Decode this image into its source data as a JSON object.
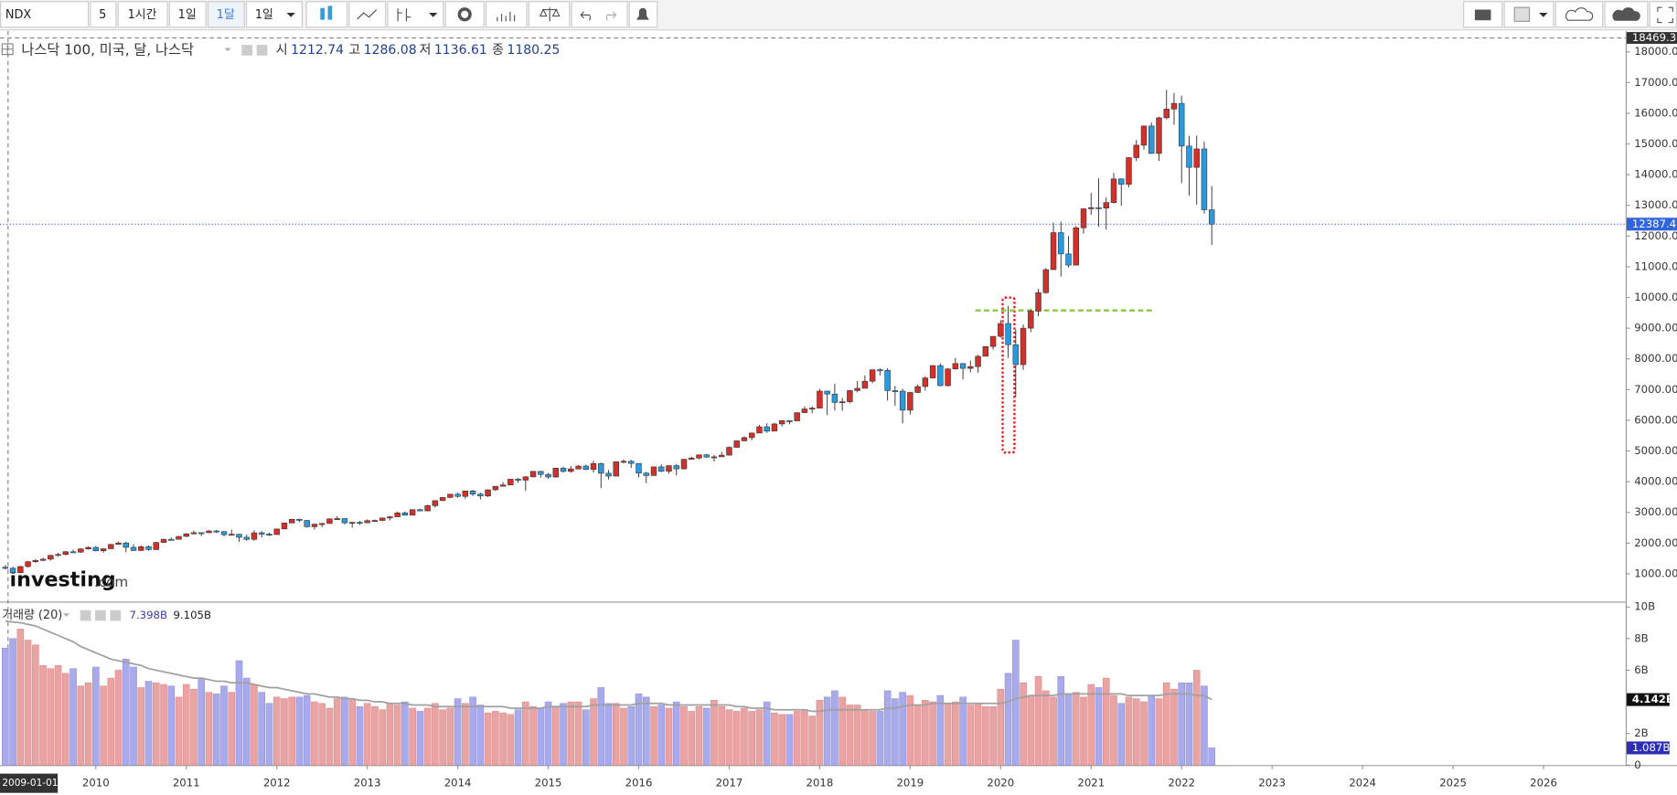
{
  "toolbar": {
    "symbol": "NDX",
    "buttons": [
      "5",
      "1시간",
      "1일",
      "1달",
      "1일"
    ]
  },
  "chart_data": [
    {
      "type": "candlestick",
      "title": "나스닥 100, 미국, 달, 나스닥",
      "ohlc_labels": [
        "시",
        "고",
        "저",
        "종"
      ],
      "x_cursor_label": "2009-01-01",
      "x": [
        "2009-01",
        "2009-02",
        "2009-03",
        "2009-04",
        "2009-05",
        "2009-06",
        "2009-07",
        "2009-08",
        "2009-09",
        "2009-10",
        "2009-11",
        "2009-12",
        "2010-01",
        "2010-02",
        "2010-03",
        "2010-04",
        "2010-05",
        "2010-06",
        "2010-07",
        "2010-08",
        "2010-09",
        "2010-10",
        "2010-11",
        "2010-12",
        "2011-01",
        "2011-02",
        "2011-03",
        "2011-04",
        "2011-05",
        "2011-06",
        "2011-07",
        "2011-08",
        "2011-09",
        "2011-10",
        "2011-11",
        "2011-12",
        "2012-01",
        "2012-02",
        "2012-03",
        "2012-04",
        "2012-05",
        "2012-06",
        "2012-07",
        "2012-08",
        "2012-09",
        "2012-10",
        "2012-11",
        "2012-12",
        "2013-01",
        "2013-02",
        "2013-03",
        "2013-04",
        "2013-05",
        "2013-06",
        "2013-07",
        "2013-08",
        "2013-09",
        "2013-10",
        "2013-11",
        "2013-12",
        "2014-01",
        "2014-02",
        "2014-03",
        "2014-04",
        "2014-05",
        "2014-06",
        "2014-07",
        "2014-08",
        "2014-09",
        "2014-10",
        "2014-11",
        "2014-12",
        "2015-01",
        "2015-02",
        "2015-03",
        "2015-04",
        "2015-05",
        "2015-06",
        "2015-07",
        "2015-08",
        "2015-09",
        "2015-10",
        "2015-11",
        "2015-12",
        "2016-01",
        "2016-02",
        "2016-03",
        "2016-04",
        "2016-05",
        "2016-06",
        "2016-07",
        "2016-08",
        "2016-09",
        "2016-10",
        "2016-11",
        "2016-12",
        "2017-01",
        "2017-02",
        "2017-03",
        "2017-04",
        "2017-05",
        "2017-06",
        "2017-07",
        "2017-08",
        "2017-09",
        "2017-10",
        "2017-11",
        "2017-12",
        "2018-01",
        "2018-02",
        "2018-03",
        "2018-04",
        "2018-05",
        "2018-06",
        "2018-07",
        "2018-08",
        "2018-09",
        "2018-10",
        "2018-11",
        "2018-12",
        "2019-01",
        "2019-02",
        "2019-03",
        "2019-04",
        "2019-05",
        "2019-06",
        "2019-07",
        "2019-08",
        "2019-09",
        "2019-10",
        "2019-11",
        "2019-12",
        "2020-01",
        "2020-02",
        "2020-03",
        "2020-04",
        "2020-05",
        "2020-06",
        "2020-07",
        "2020-08",
        "2020-09",
        "2020-10",
        "2020-11",
        "2020-12",
        "2021-01",
        "2021-02",
        "2021-03",
        "2021-04",
        "2021-05",
        "2021-06",
        "2021-07",
        "2021-08",
        "2021-09",
        "2021-10",
        "2021-11",
        "2021-12",
        "2022-01",
        "2022-02",
        "2022-03",
        "2022-04",
        "2022-05"
      ],
      "open": [
        1212.74,
        1180,
        1036,
        1237,
        1393,
        1435,
        1477,
        1600,
        1632,
        1719,
        1706,
        1810,
        1860,
        1749,
        1816,
        1957,
        2004,
        1862,
        1759,
        1883,
        1789,
        2021,
        2124,
        2123,
        2218,
        2300,
        2340,
        2338,
        2396,
        2375,
        2274,
        2289,
        2190,
        2122,
        2336,
        2292,
        2278,
        2460,
        2656,
        2776,
        2739,
        2534,
        2616,
        2638,
        2791,
        2800,
        2660,
        2677,
        2661,
        2731,
        2738,
        2819,
        2856,
        2985,
        2910,
        3090,
        3048,
        3218,
        3384,
        3487,
        3592,
        3521,
        3697,
        3596,
        3535,
        3736,
        3850,
        3896,
        4082,
        4050,
        4158,
        4337,
        4236,
        4152,
        4441,
        4334,
        4415,
        4509,
        4397,
        4589,
        4275,
        4182,
        4649,
        4665,
        4594,
        4280,
        4201,
        4483,
        4341,
        4523,
        4418,
        4730,
        4771,
        4875,
        4801,
        4810,
        4864,
        5118,
        5330,
        5436,
        5584,
        5788,
        5647,
        5880,
        5988,
        5980,
        6249,
        6367,
        6396,
        6950,
        6854,
        6581,
        6605,
        6967,
        7040,
        7272,
        7645,
        7628,
        6967,
        6950,
        6330,
        6906,
        7099,
        7378,
        7781,
        7128,
        7672,
        7848,
        7692,
        7749,
        8084,
        8403,
        8733,
        9151,
        8462,
        7813,
        9000,
        9555,
        10156,
        10906,
        12111,
        11418,
        11053,
        12269,
        12888,
        12925,
        12909,
        13091,
        13861,
        13686,
        14554,
        14959,
        15583,
        14689,
        15850,
        16135,
        16320,
        14930,
        14237,
        14838,
        12855
      ],
      "high": [
        1286.08,
        1230,
        1260,
        1420,
        1480,
        1520,
        1620,
        1680,
        1740,
        1790,
        1830,
        1890,
        1900,
        1840,
        1970,
        2050,
        2040,
        1970,
        1920,
        1920,
        2040,
        2140,
        2190,
        2230,
        2330,
        2410,
        2350,
        2420,
        2430,
        2390,
        2440,
        2300,
        2280,
        2420,
        2390,
        2340,
        2470,
        2670,
        2780,
        2800,
        2750,
        2630,
        2660,
        2800,
        2880,
        2800,
        2690,
        2720,
        2770,
        2770,
        2830,
        2880,
        3030,
        3030,
        3100,
        3110,
        3250,
        3390,
        3500,
        3600,
        3650,
        3710,
        3740,
        3640,
        3740,
        3860,
        3990,
        4090,
        4120,
        4180,
        4340,
        4350,
        4290,
        4450,
        4490,
        4510,
        4540,
        4560,
        4680,
        4620,
        4380,
        4650,
        4720,
        4710,
        4600,
        4320,
        4500,
        4560,
        4530,
        4580,
        4740,
        4810,
        4880,
        4900,
        4870,
        4970,
        5150,
        5340,
        5480,
        5600,
        5850,
        5900,
        5920,
        6000,
        6010,
        6250,
        6450,
        6460,
        7020,
        6960,
        7190,
        6730,
        6990,
        7280,
        7460,
        7650,
        7690,
        7700,
        7120,
        7030,
        6930,
        7160,
        7440,
        7800,
        7850,
        7700,
        8030,
        7860,
        7940,
        8130,
        8410,
        8740,
        9260,
        9720,
        8960,
        9120,
        9620,
        10280,
        10960,
        12440,
        12470,
        12000,
        12330,
        12900,
        13400,
        13880,
        13260,
        14060,
        13880,
        14570,
        15130,
        15600,
        15700,
        15890,
        16760,
        16660,
        16570,
        15260,
        15270,
        15070,
        13630
      ],
      "low": [
        1136.61,
        1010,
        1020,
        1200,
        1360,
        1420,
        1430,
        1560,
        1600,
        1680,
        1680,
        1790,
        1730,
        1690,
        1810,
        1950,
        1700,
        1750,
        1740,
        1750,
        1780,
        2010,
        2090,
        2120,
        2200,
        2290,
        2230,
        2330,
        2330,
        2220,
        2270,
        2040,
        2080,
        2080,
        2180,
        2230,
        2270,
        2460,
        2650,
        2680,
        2500,
        2440,
        2520,
        2630,
        2760,
        2610,
        2500,
        2590,
        2660,
        2700,
        2730,
        2740,
        2850,
        2890,
        2900,
        3040,
        3050,
        3160,
        3370,
        3470,
        3480,
        3440,
        3530,
        3420,
        3500,
        3700,
        3840,
        3880,
        3960,
        3700,
        4140,
        4130,
        4090,
        4130,
        4300,
        4290,
        4400,
        4380,
        4300,
        3790,
        4070,
        4180,
        4600,
        4450,
        4140,
        3950,
        4190,
        4310,
        4260,
        4200,
        4400,
        4720,
        4730,
        4780,
        4660,
        4810,
        4860,
        5110,
        5320,
        5350,
        5580,
        5590,
        5640,
        5800,
        5870,
        5980,
        6230,
        6230,
        6390,
        6170,
        6320,
        6310,
        6550,
        6910,
        7040,
        7210,
        7460,
        6640,
        6470,
        5900,
        6190,
        6890,
        6970,
        7370,
        7110,
        7100,
        7650,
        7330,
        7560,
        7550,
        8080,
        8300,
        8700,
        8030,
        6770,
        7640,
        8870,
        9390,
        10120,
        10900,
        10680,
        10980,
        11060,
        12080,
        12690,
        12300,
        12210,
        13060,
        12990,
        13590,
        14440,
        14810,
        14680,
        14450,
        15800,
        15620,
        13720,
        13320,
        13020,
        12730,
        11710
      ],
      "close": [
        1180.25,
        1036,
        1237,
        1393,
        1435,
        1477,
        1600,
        1632,
        1719,
        1706,
        1810,
        1860,
        1749,
        1816,
        1957,
        2004,
        1862,
        1759,
        1883,
        1789,
        2021,
        2124,
        2123,
        2218,
        2300,
        2340,
        2338,
        2396,
        2375,
        2274,
        2289,
        2190,
        2122,
        2336,
        2292,
        2278,
        2460,
        2656,
        2776,
        2739,
        2534,
        2616,
        2638,
        2791,
        2800,
        2660,
        2677,
        2661,
        2731,
        2738,
        2819,
        2856,
        2985,
        2910,
        3090,
        3048,
        3218,
        3384,
        3487,
        3592,
        3521,
        3697,
        3596,
        3535,
        3736,
        3850,
        3896,
        4082,
        4050,
        4158,
        4337,
        4236,
        4152,
        4441,
        4334,
        4415,
        4509,
        4397,
        4589,
        4275,
        4182,
        4649,
        4665,
        4594,
        4280,
        4201,
        4483,
        4341,
        4523,
        4418,
        4730,
        4771,
        4875,
        4801,
        4810,
        4864,
        5118,
        5330,
        5436,
        5584,
        5788,
        5647,
        5880,
        5988,
        5980,
        6249,
        6367,
        6396,
        6950,
        6854,
        6581,
        6605,
        6967,
        7040,
        7272,
        7645,
        7628,
        6967,
        6950,
        6330,
        6906,
        7099,
        7378,
        7781,
        7128,
        7672,
        7848,
        7692,
        7749,
        8084,
        8403,
        8733,
        9151,
        8462,
        7813,
        9000,
        9555,
        10156,
        10906,
        12111,
        11418,
        11053,
        12269,
        12888,
        12925,
        12909,
        13091,
        13861,
        13686,
        14554,
        14959,
        15583,
        14689,
        15850,
        16135,
        16320,
        14930,
        14237,
        14838,
        12855,
        12387.4
      ],
      "up_color": "#d3302c",
      "down_color": "#2e98dc",
      "ylim": [
        95,
        18469.3
      ],
      "yticks": [
        {
          "value": 1000,
          "label": "1000.00"
        },
        {
          "value": 2000,
          "label": "2000.00"
        },
        {
          "value": 3000,
          "label": "3000.00"
        },
        {
          "value": 4000,
          "label": "4000.00"
        },
        {
          "value": 5000,
          "label": "5000.00"
        },
        {
          "value": 6000,
          "label": "6000.00"
        },
        {
          "value": 7000,
          "label": "7000.00"
        },
        {
          "value": 8000,
          "label": "8000.00"
        },
        {
          "value": 9000,
          "label": "9000.00"
        },
        {
          "value": 10000,
          "label": "10000.00"
        },
        {
          "value": 11000,
          "label": "11000.00"
        },
        {
          "value": 12000,
          "label": "12000.00"
        },
        {
          "value": 13000,
          "label": "13000.00"
        },
        {
          "value": 14000,
          "label": "14000.00"
        },
        {
          "value": 15000,
          "label": "15000.00"
        },
        {
          "value": 16000,
          "label": "16000.00"
        },
        {
          "value": 17000,
          "label": "17000.00"
        },
        {
          "value": 18000,
          "label": "18000.00"
        }
      ],
      "top_label": "18469.30",
      "last_label": "12387.40",
      "xticks": [
        2010,
        2011,
        2012,
        2013,
        2014,
        2015,
        2016,
        2017,
        2018,
        2019,
        2020,
        2021,
        2022,
        2023,
        2024,
        2025,
        2026
      ],
      "logo": [
        "investing",
        ".com"
      ]
    },
    {
      "type": "volume",
      "title": "거래량 (20)",
      "values": [
        7.398,
        8.0,
        8.6,
        7.9,
        7.6,
        6.3,
        6.1,
        6.3,
        5.8,
        6.1,
        5.0,
        5.2,
        6.2,
        5.0,
        5.5,
        6.0,
        6.7,
        6.2,
        4.9,
        5.3,
        5.2,
        5.1,
        5.0,
        4.3,
        5.1,
        4.8,
        5.5,
        4.6,
        4.5,
        5.0,
        4.6,
        6.6,
        5.5,
        5.1,
        4.6,
        3.9,
        4.3,
        4.2,
        4.3,
        4.3,
        4.4,
        4.0,
        3.9,
        3.6,
        4.2,
        4.3,
        4.2,
        3.7,
        3.9,
        3.7,
        3.5,
        3.9,
        3.8,
        4.0,
        3.6,
        3.4,
        3.6,
        3.9,
        3.5,
        3.6,
        4.2,
        3.9,
        4.3,
        3.8,
        3.3,
        3.4,
        3.3,
        3.2,
        3.5,
        4.0,
        3.7,
        3.6,
        4.0,
        3.7,
        3.9,
        4.0,
        4.0,
        3.5,
        4.2,
        4.9,
        3.9,
        3.9,
        3.6,
        3.7,
        4.5,
        4.3,
        3.7,
        3.8,
        3.6,
        4.0,
        3.7,
        3.4,
        3.7,
        3.6,
        4.1,
        3.7,
        3.5,
        3.4,
        3.6,
        3.4,
        3.5,
        4.0,
        3.3,
        3.2,
        3.2,
        3.4,
        3.5,
        3.1,
        4.1,
        4.3,
        4.7,
        4.3,
        3.8,
        3.8,
        3.5,
        3.4,
        3.4,
        4.7,
        4.2,
        4.6,
        4.4,
        3.8,
        4.1,
        4.0,
        4.4,
        3.9,
        4.0,
        4.3,
        3.8,
        3.9,
        3.7,
        3.7,
        4.8,
        5.8,
        7.9,
        5.2,
        4.4,
        5.6,
        4.7,
        4.3,
        5.6,
        4.5,
        4.6,
        4.3,
        5.1,
        4.9,
        5.5,
        4.4,
        3.9,
        4.3,
        4.2,
        4.0,
        4.4,
        4.2,
        5.2,
        4.8,
        5.2,
        5.2,
        6.0,
        5.0,
        1.087
      ],
      "ma": [
        9.105,
        9.05,
        9.0,
        8.9,
        8.8,
        8.6,
        8.4,
        8.2,
        8.0,
        7.8,
        7.5,
        7.3,
        7.1,
        6.9,
        6.7,
        6.6,
        6.5,
        6.4,
        6.3,
        6.1,
        6.0,
        5.9,
        5.8,
        5.7,
        5.6,
        5.5,
        5.5,
        5.4,
        5.3,
        5.3,
        5.2,
        5.2,
        5.2,
        5.1,
        5.0,
        4.9,
        4.9,
        4.8,
        4.7,
        4.6,
        4.5,
        4.5,
        4.4,
        4.3,
        4.3,
        4.2,
        4.2,
        4.1,
        4.1,
        4.0,
        4.0,
        3.9,
        3.9,
        3.9,
        3.8,
        3.8,
        3.8,
        3.7,
        3.7,
        3.7,
        3.7,
        3.7,
        3.7,
        3.7,
        3.7,
        3.7,
        3.7,
        3.6,
        3.6,
        3.6,
        3.6,
        3.6,
        3.7,
        3.7,
        3.7,
        3.7,
        3.7,
        3.7,
        3.8,
        3.8,
        3.8,
        3.8,
        3.8,
        3.8,
        3.9,
        3.9,
        3.9,
        3.9,
        3.8,
        3.8,
        3.8,
        3.8,
        3.8,
        3.8,
        3.8,
        3.8,
        3.8,
        3.7,
        3.7,
        3.6,
        3.6,
        3.6,
        3.5,
        3.5,
        3.5,
        3.5,
        3.5,
        3.4,
        3.4,
        3.5,
        3.5,
        3.5,
        3.5,
        3.5,
        3.5,
        3.5,
        3.5,
        3.6,
        3.6,
        3.7,
        3.8,
        3.8,
        3.8,
        3.9,
        3.9,
        3.9,
        3.9,
        3.9,
        3.9,
        3.9,
        3.9,
        3.9,
        3.9,
        4.0,
        4.2,
        4.3,
        4.4,
        4.4,
        4.4,
        4.4,
        4.5,
        4.5,
        4.5,
        4.5,
        4.5,
        4.5,
        4.5,
        4.5,
        4.5,
        4.4,
        4.4,
        4.4,
        4.4,
        4.4,
        4.5,
        4.5,
        4.5,
        4.5,
        4.4,
        4.4,
        4.142
      ],
      "up_color": "#eaa3a3",
      "down_color": "#a9aaec",
      "ma_color": "#a0a0a0",
      "header_labels": [
        "7.398B",
        "9.105B"
      ],
      "last_labels": [
        "1.087B",
        "4.142B"
      ],
      "ylim": [
        0,
        10.34
      ],
      "yticks": [
        {
          "value": 0,
          "label": "0"
        },
        {
          "value": 2,
          "label": "2B"
        },
        {
          "value": 6,
          "label": "6B"
        },
        {
          "value": 8,
          "label": "8B"
        },
        {
          "value": 10,
          "label": "10B"
        }
      ]
    }
  ]
}
